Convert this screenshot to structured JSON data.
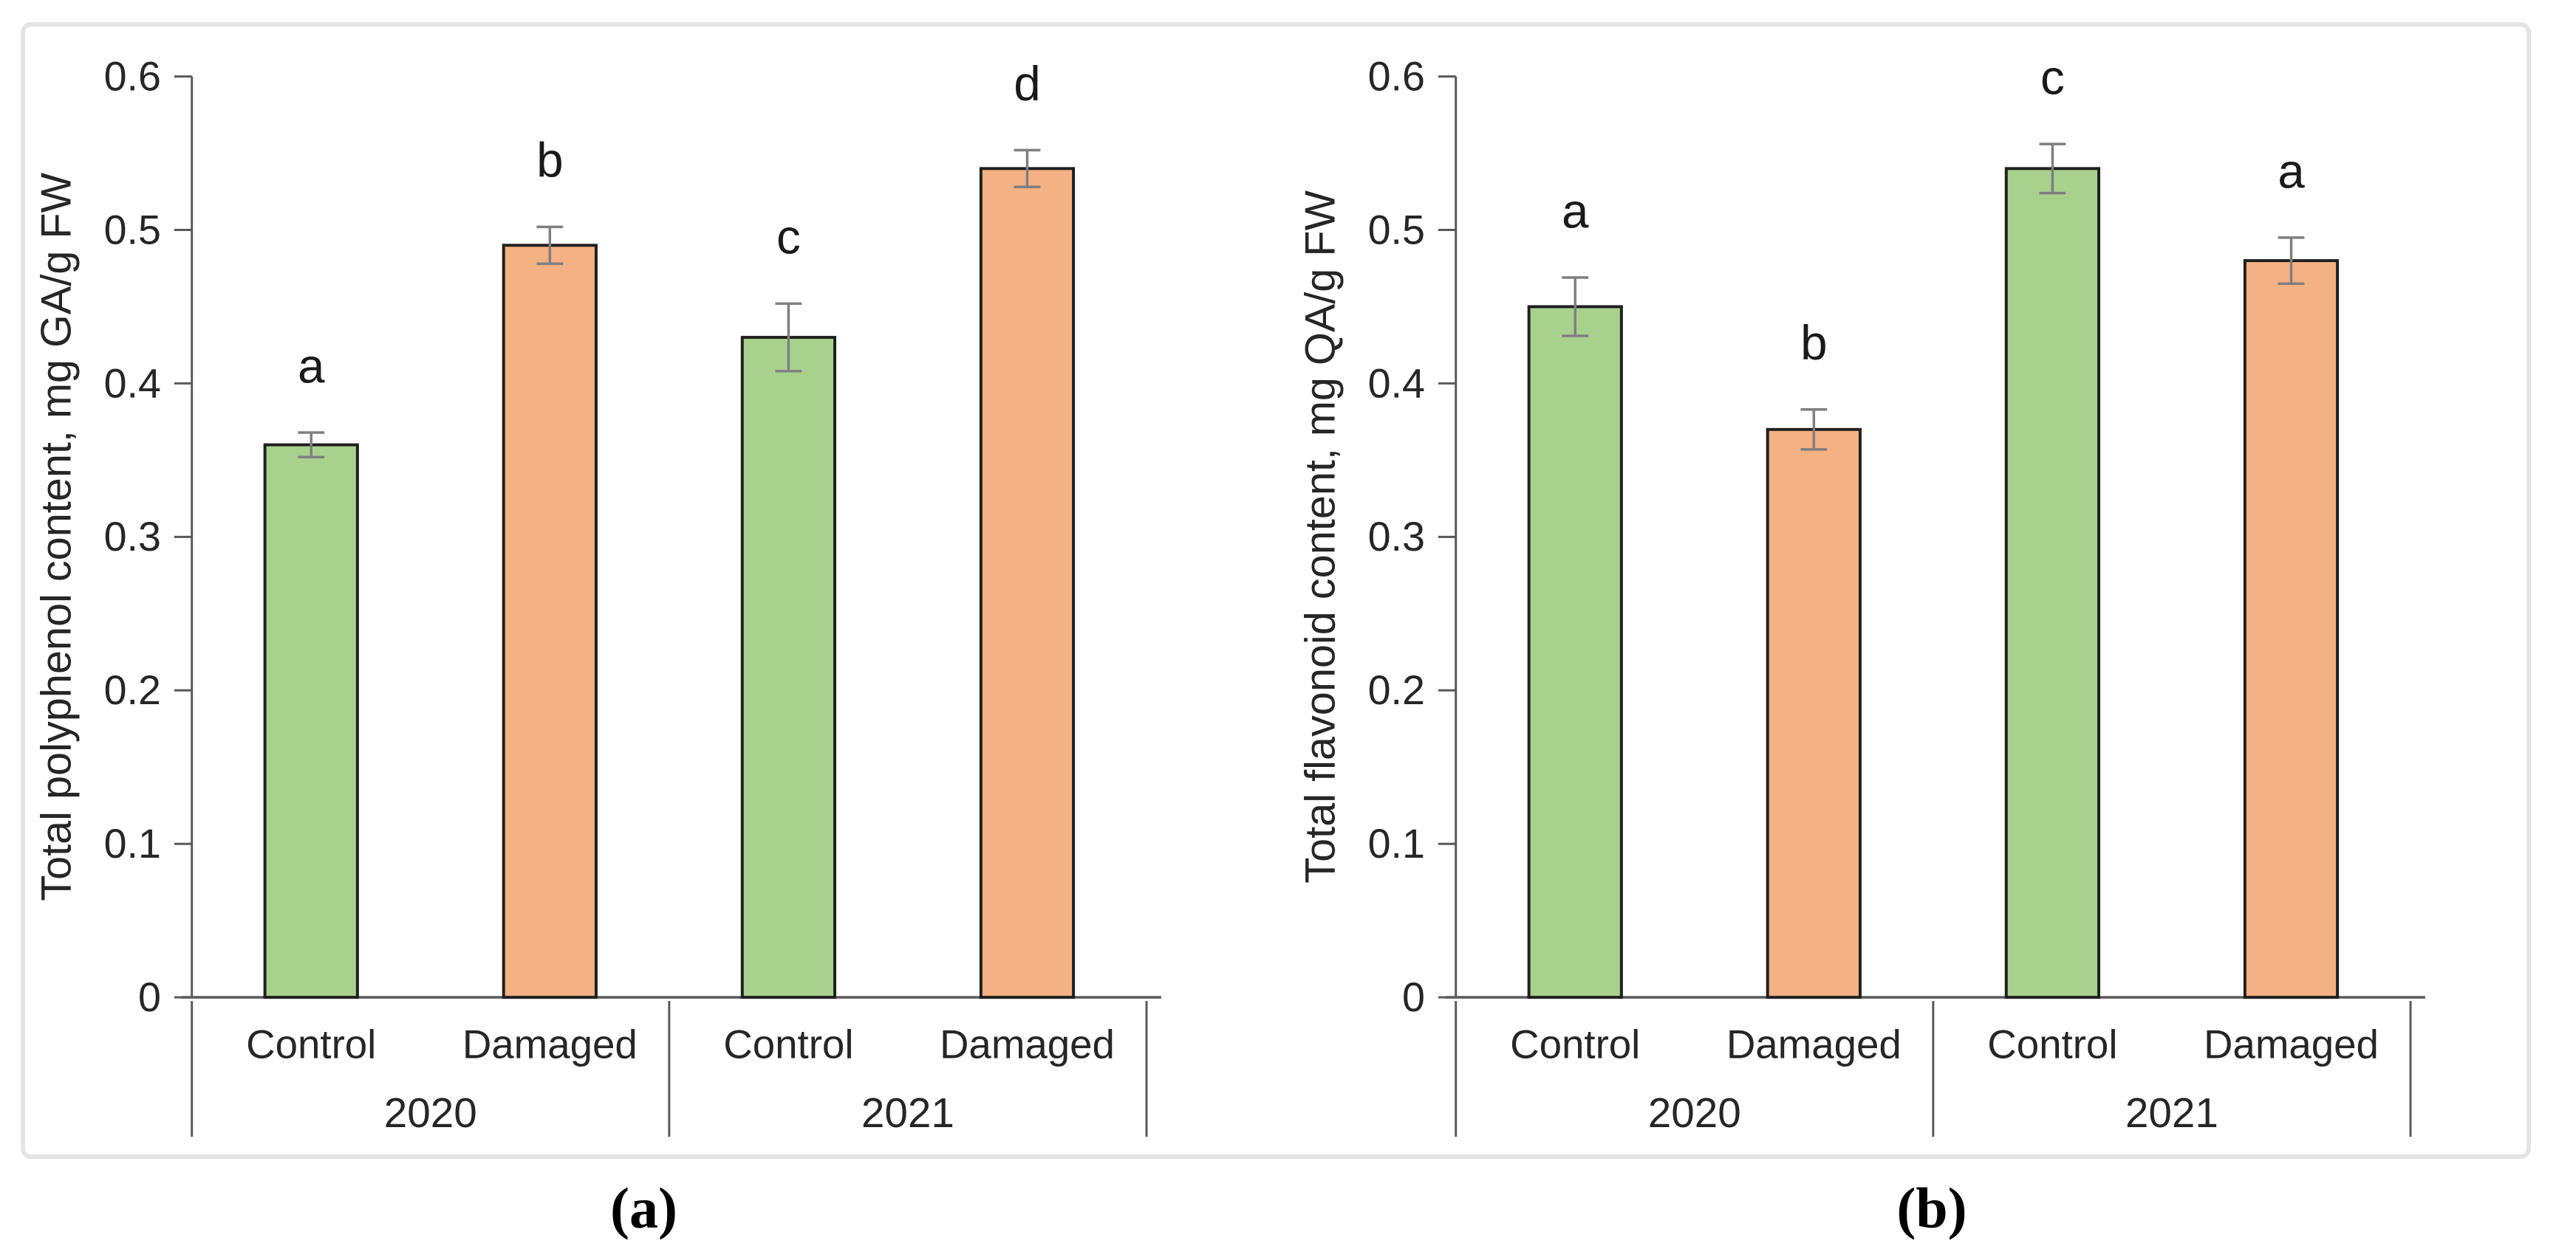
{
  "figure": {
    "panel_a_label": "(a)",
    "panel_b_label": "(b)"
  },
  "colors": {
    "control_fill": "#a9d18e",
    "damaged_fill": "#f4b183",
    "bar_stroke": "#1f1f1f",
    "error_bar": "#7f7f7f",
    "axis_line": "#595959",
    "text": "#262626",
    "letter_text": "#1a1a1a"
  },
  "chart_data": [
    {
      "id": "total-polyphenol",
      "type": "bar",
      "panel_label": "(a)",
      "ylabel": "Total polyphenol content, mg GA/g FW",
      "xlabel": "",
      "ylim": [
        0,
        0.6
      ],
      "ytick_step": 0.1,
      "yticks": [
        "0.6",
        "0.5",
        "0.4",
        "0.3",
        "0.2",
        "0.1",
        "0"
      ],
      "grid": false,
      "legend": "none",
      "groups": [
        "2020",
        "2021"
      ],
      "categories": [
        "Control",
        "Damaged"
      ],
      "bars": [
        {
          "group": "2020",
          "category": "Control",
          "value": 0.36,
          "error": 0.008,
          "letter": "a",
          "color_key": "control_fill"
        },
        {
          "group": "2020",
          "category": "Damaged",
          "value": 0.49,
          "error": 0.012,
          "letter": "b",
          "color_key": "damaged_fill"
        },
        {
          "group": "2021",
          "category": "Control",
          "value": 0.43,
          "error": 0.022,
          "letter": "c",
          "color_key": "control_fill"
        },
        {
          "group": "2021",
          "category": "Damaged",
          "value": 0.54,
          "error": 0.012,
          "letter": "d",
          "color_key": "damaged_fill"
        }
      ]
    },
    {
      "id": "total-flavonoid",
      "type": "bar",
      "panel_label": "(b)",
      "ylabel": "Total flavonoid content, mg QA/g FW",
      "xlabel": "",
      "ylim": [
        0,
        0.6
      ],
      "ytick_step": 0.1,
      "yticks": [
        "0.6",
        "0.5",
        "0.4",
        "0.3",
        "0.2",
        "0.1",
        "0"
      ],
      "grid": false,
      "legend": "none",
      "groups": [
        "2020",
        "2021"
      ],
      "categories": [
        "Control",
        "Damaged"
      ],
      "bars": [
        {
          "group": "2020",
          "category": "Control",
          "value": 0.45,
          "error": 0.019,
          "letter": "a",
          "color_key": "control_fill"
        },
        {
          "group": "2020",
          "category": "Damaged",
          "value": 0.37,
          "error": 0.013,
          "letter": "b",
          "color_key": "damaged_fill"
        },
        {
          "group": "2021",
          "category": "Control",
          "value": 0.54,
          "error": 0.016,
          "letter": "c",
          "color_key": "control_fill"
        },
        {
          "group": "2021",
          "category": "Damaged",
          "value": 0.48,
          "error": 0.015,
          "letter": "a",
          "color_key": "damaged_fill"
        }
      ]
    }
  ]
}
